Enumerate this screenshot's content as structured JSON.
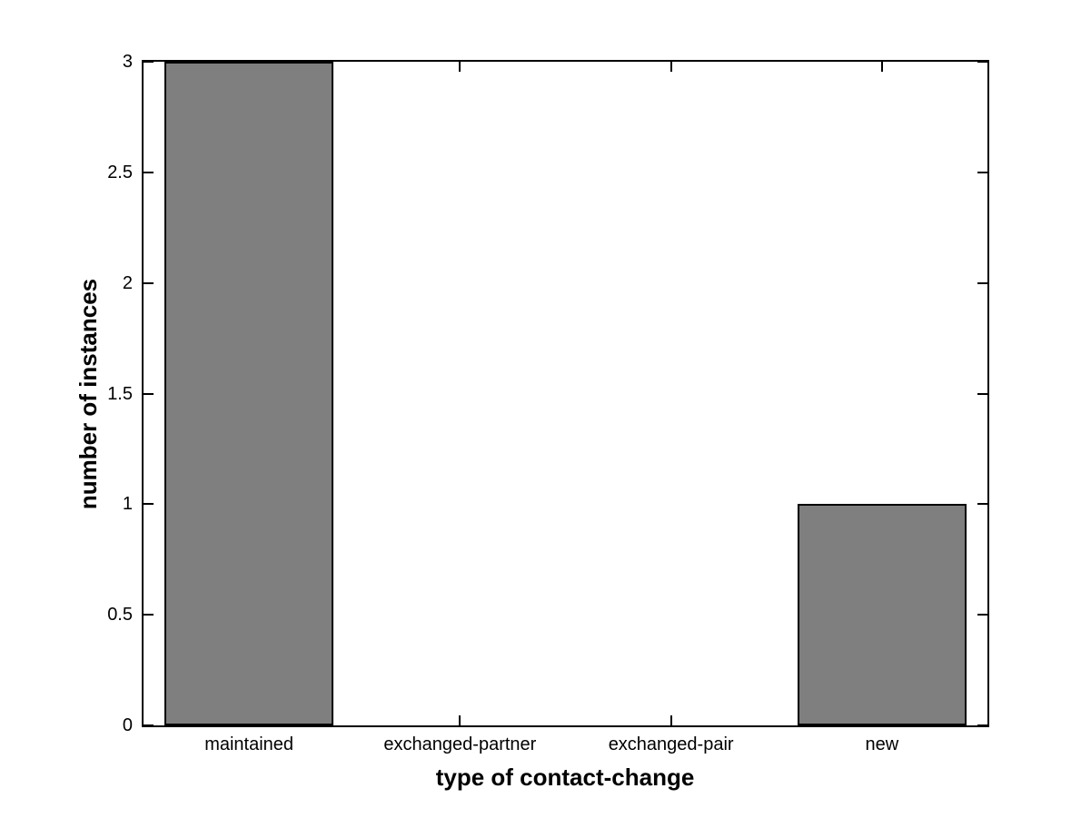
{
  "figure": {
    "background_color": "#ffffff",
    "axis_color": "#000000"
  },
  "chart_data": {
    "type": "bar",
    "categories": [
      "maintained",
      "exchanged-partner",
      "exchanged-pair",
      "new"
    ],
    "values": [
      3,
      0,
      0,
      1
    ],
    "title": "",
    "xlabel": "type of contact-change",
    "ylabel": "number of instances",
    "ylim": [
      0,
      3
    ],
    "yticks": [
      0,
      0.5,
      1,
      1.5,
      2,
      2.5,
      3
    ],
    "ytick_labels": [
      "0",
      "0.5",
      "1",
      "1.5",
      "2",
      "2.5",
      "3"
    ],
    "bar_color": "#7f7f7f",
    "bar_edge_color": "#000000",
    "bar_width_fraction": 0.8,
    "grid": false,
    "legend": null
  }
}
